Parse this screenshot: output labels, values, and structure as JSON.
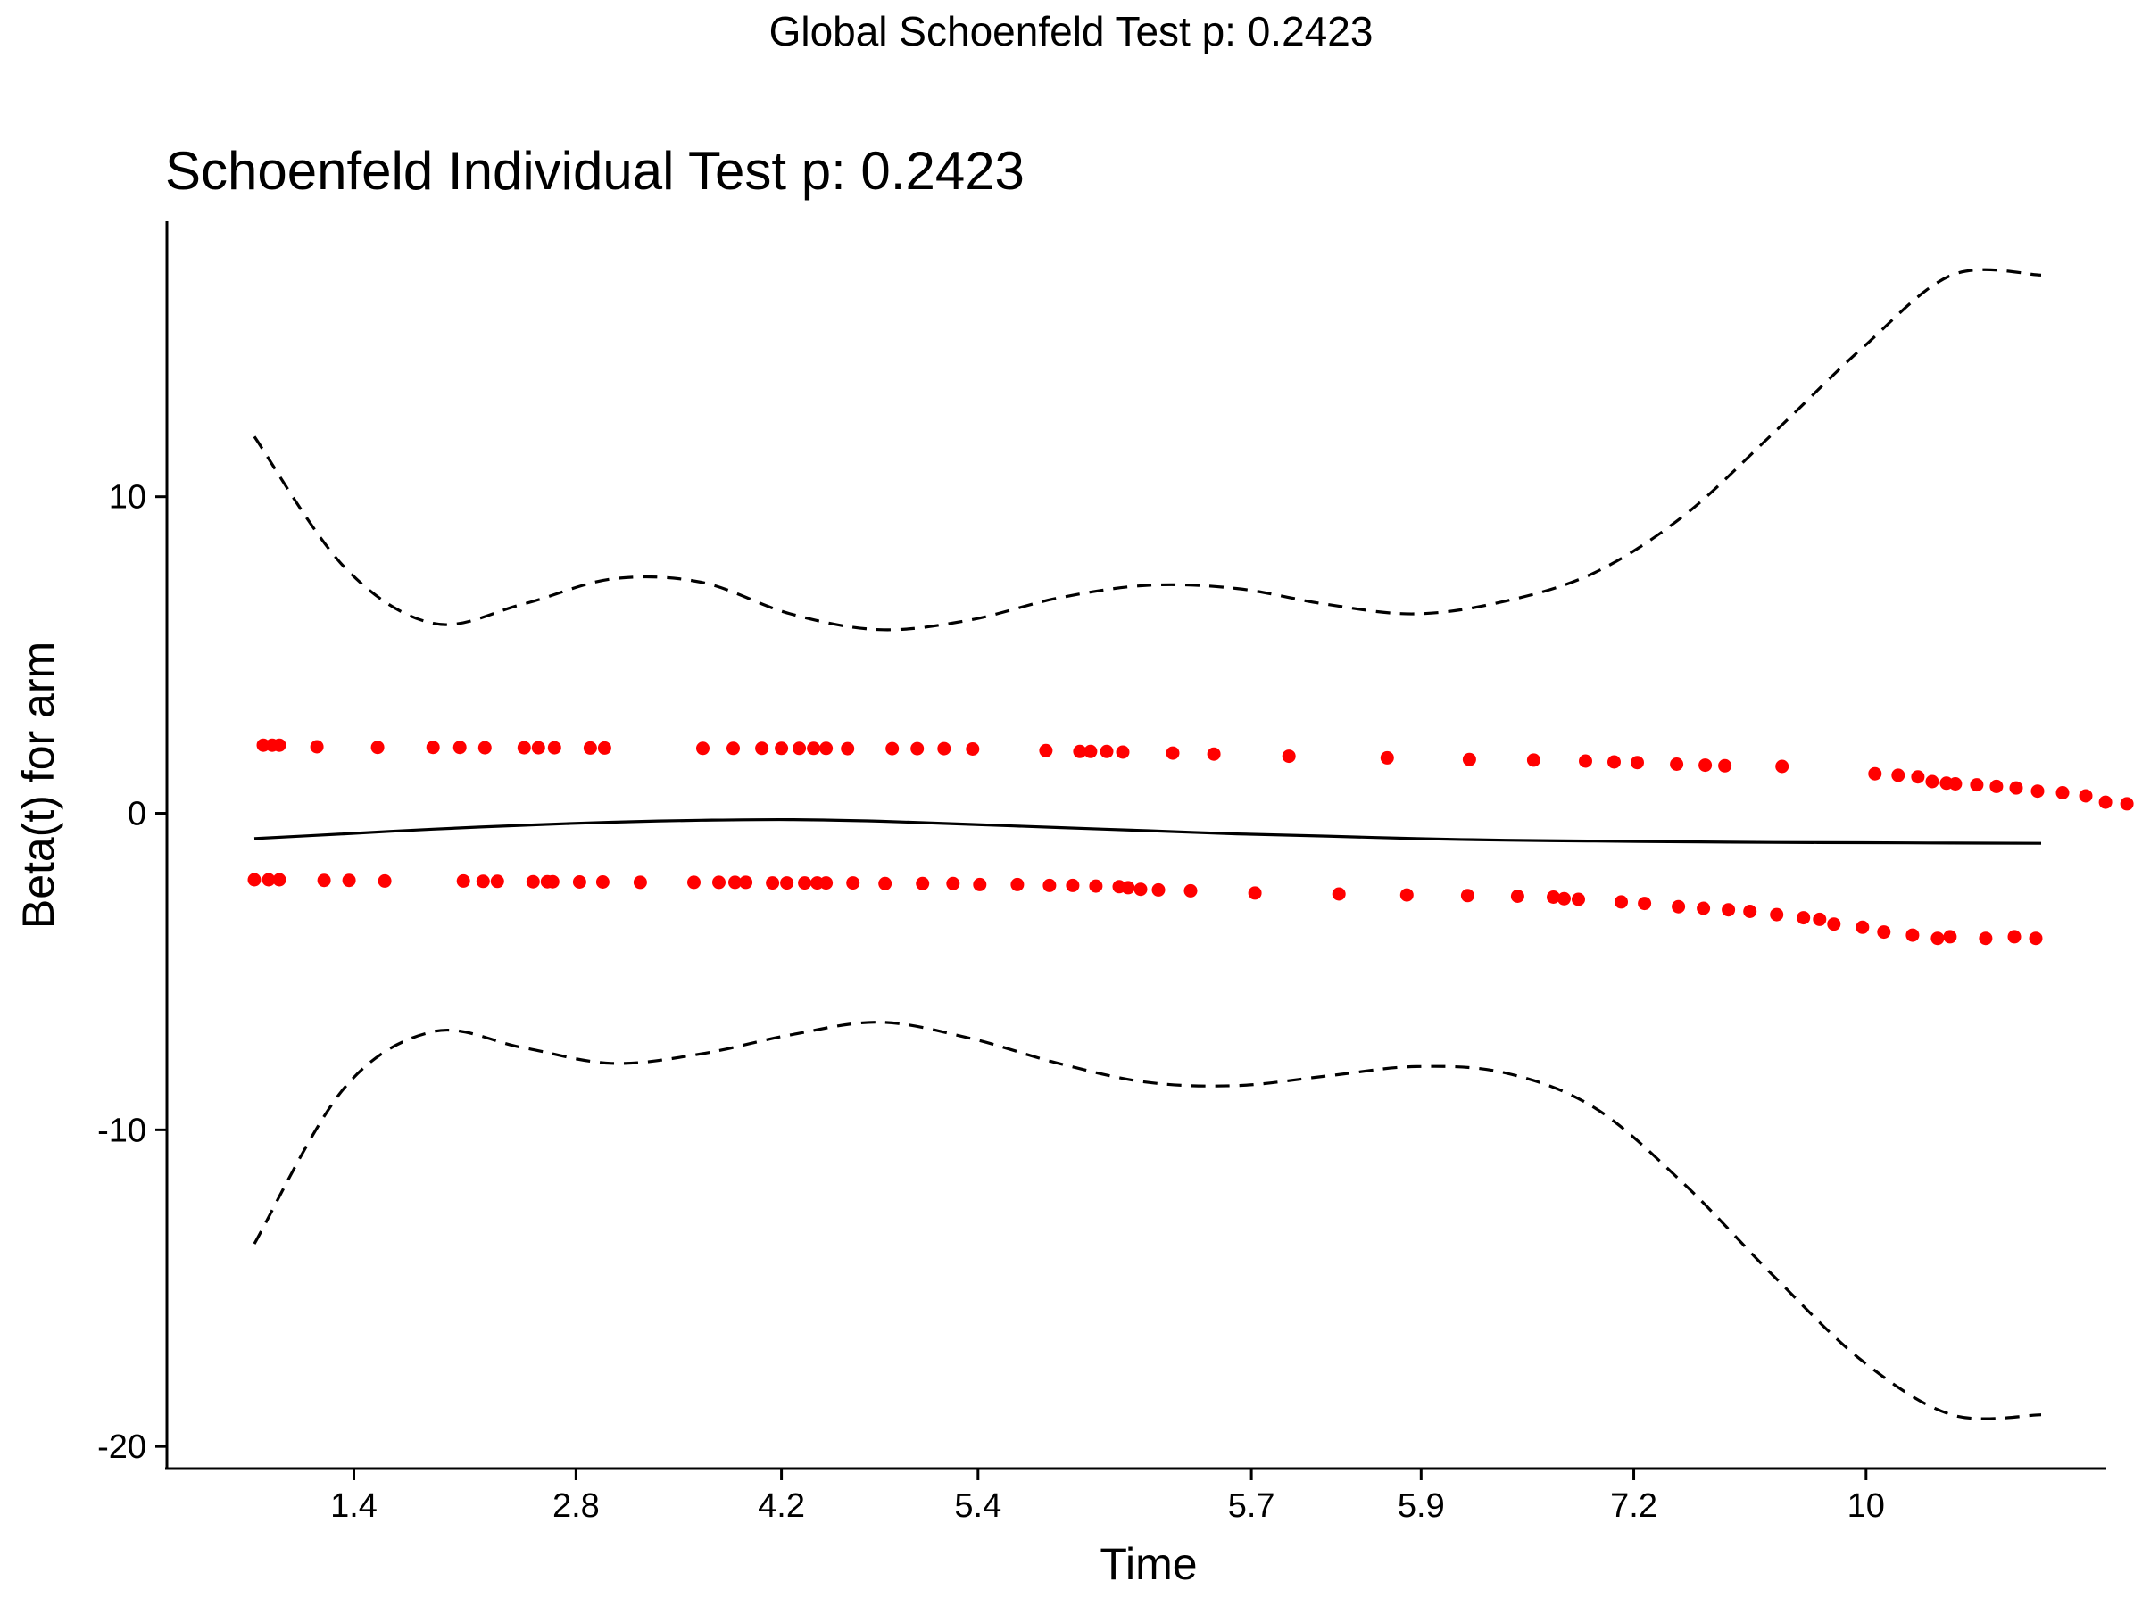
{
  "global_title": "Global Schoenfeld Test p: 0.2423",
  "chart_data": {
    "type": "scatter",
    "title": "Schoenfeld Individual Test p: 0.2423",
    "xlabel": "Time",
    "ylabel": "Beta(t) for arm",
    "x_tick_labels": [
      "1.4",
      "2.8",
      "4.2",
      "5.4",
      "5.7",
      "5.9",
      "7.2",
      "10"
    ],
    "y_ticks": [
      10,
      0,
      -10,
      -20
    ],
    "y_tick_labels": [
      "10",
      "0",
      "-10",
      "-20"
    ],
    "ylim": [
      -20.7,
      18.7
    ],
    "x_axis_note": "x-axis is a transformed (rank/km) time scale; tick labels show original times",
    "x_index_range": [
      0,
      100
    ],
    "x_tick_positions": [
      5.57,
      18.0,
      29.5,
      40.5,
      55.8,
      65.3,
      77.2,
      90.2
    ],
    "grid": false,
    "legend": "none",
    "colors": {
      "points": "#ff0000",
      "lines": "#000000"
    },
    "series": [
      {
        "name": "",
        "kind": "line",
        "style": "solid",
        "x": [
          0,
          5,
          10,
          15,
          20,
          25,
          30,
          35,
          40,
          45,
          50,
          55,
          60,
          65,
          70,
          75,
          80,
          85,
          90,
          95,
          100
        ],
        "y": [
          -0.8,
          -0.65,
          -0.5,
          -0.38,
          -0.28,
          -0.22,
          -0.2,
          -0.25,
          -0.35,
          -0.45,
          -0.55,
          -0.65,
          -0.72,
          -0.8,
          -0.85,
          -0.88,
          -0.9,
          -0.92,
          -0.93,
          -0.94,
          -0.95
        ]
      },
      {
        "name": "",
        "kind": "line",
        "style": "dashed",
        "x": [
          0,
          5,
          10,
          15,
          20,
          25,
          30,
          35,
          40,
          45,
          50,
          55,
          60,
          65,
          70,
          75,
          80,
          85,
          90,
          95,
          100
        ],
        "y": [
          11.9,
          7.8,
          6.0,
          6.6,
          7.4,
          7.3,
          6.3,
          5.8,
          6.1,
          6.8,
          7.2,
          7.1,
          6.6,
          6.3,
          6.7,
          7.6,
          9.4,
          12.0,
          14.7,
          17.0,
          17.0
        ]
      },
      {
        "name": "",
        "kind": "line",
        "style": "dashed",
        "x": [
          0,
          5,
          10,
          15,
          20,
          25,
          30,
          35,
          40,
          45,
          50,
          55,
          60,
          65,
          70,
          75,
          80,
          85,
          90,
          95,
          100
        ],
        "y": [
          -13.6,
          -8.7,
          -6.9,
          -7.4,
          -7.9,
          -7.6,
          -7.0,
          -6.6,
          -7.1,
          -7.9,
          -8.5,
          -8.6,
          -8.3,
          -8.0,
          -8.2,
          -9.3,
          -11.7,
          -14.6,
          -17.3,
          -19.0,
          -19.0
        ]
      },
      {
        "name": "",
        "kind": "points",
        "x": [
          0.5,
          1.0,
          1.4,
          3.5,
          6.9,
          10.0,
          11.5,
          12.9,
          15.1,
          15.9,
          16.8,
          18.8,
          19.6,
          25.1,
          26.8,
          28.4,
          29.5,
          30.5,
          31.3,
          32.0,
          33.2,
          35.7,
          37.1,
          38.6,
          40.2,
          44.3,
          46.2,
          46.8,
          47.7,
          48.6,
          51.4,
          53.7,
          57.9,
          63.4,
          68.0,
          71.6,
          74.5,
          76.1,
          77.4,
          79.6,
          81.2,
          82.3,
          85.5,
          90.7,
          92.0,
          93.1,
          93.9,
          94.7,
          95.2,
          96.4,
          97.5,
          98.6,
          99.8,
          101.2,
          102.5,
          103.6,
          104.8,
          107.6,
          108.9,
          110.0,
          111.2,
          112.2,
          113.3
        ],
        "y": [
          2.15,
          2.15,
          2.15,
          2.1,
          2.08,
          2.08,
          2.08,
          2.07,
          2.07,
          2.07,
          2.07,
          2.06,
          2.06,
          2.05,
          2.05,
          2.05,
          2.05,
          2.05,
          2.05,
          2.05,
          2.04,
          2.04,
          2.04,
          2.04,
          2.03,
          1.98,
          1.95,
          1.95,
          1.95,
          1.93,
          1.9,
          1.87,
          1.8,
          1.75,
          1.7,
          1.68,
          1.65,
          1.62,
          1.6,
          1.55,
          1.52,
          1.5,
          1.48,
          1.25,
          1.2,
          1.15,
          1.0,
          0.95,
          0.93,
          0.9,
          0.85,
          0.8,
          0.7,
          0.65,
          0.55,
          0.35,
          0.3,
          0.32,
          0.28,
          0.34,
          0.27,
          0.29,
          0.32
        ]
      },
      {
        "name": "",
        "kind": "points",
        "x": [
          0.0,
          0.8,
          1.4,
          3.9,
          5.3,
          7.3,
          11.7,
          12.8,
          13.6,
          15.6,
          16.4,
          16.7,
          18.2,
          19.5,
          21.6,
          24.6,
          26.0,
          26.9,
          27.5,
          29.0,
          29.8,
          30.8,
          31.5,
          32.0,
          33.5,
          35.3,
          37.4,
          39.1,
          40.6,
          42.7,
          44.5,
          45.8,
          47.1,
          48.4,
          48.9,
          49.6,
          50.6,
          52.4,
          56.0,
          60.7,
          64.5,
          67.9,
          70.7,
          72.7,
          73.3,
          74.1,
          76.5,
          77.8,
          79.7,
          81.1,
          82.5,
          83.7,
          85.2,
          86.7,
          87.6,
          88.4,
          90.0,
          91.2,
          92.8,
          94.2,
          94.9,
          96.9,
          98.5,
          99.7
        ],
        "y": [
          -2.1,
          -2.1,
          -2.1,
          -2.12,
          -2.12,
          -2.14,
          -2.14,
          -2.15,
          -2.15,
          -2.16,
          -2.16,
          -2.16,
          -2.17,
          -2.17,
          -2.18,
          -2.18,
          -2.18,
          -2.18,
          -2.18,
          -2.2,
          -2.2,
          -2.2,
          -2.2,
          -2.2,
          -2.2,
          -2.22,
          -2.22,
          -2.22,
          -2.25,
          -2.25,
          -2.28,
          -2.28,
          -2.3,
          -2.32,
          -2.35,
          -2.4,
          -2.42,
          -2.45,
          -2.52,
          -2.55,
          -2.58,
          -2.6,
          -2.62,
          -2.65,
          -2.7,
          -2.72,
          -2.8,
          -2.85,
          -2.95,
          -3.0,
          -3.05,
          -3.1,
          -3.2,
          -3.3,
          -3.35,
          -3.5,
          -3.6,
          -3.75,
          -3.85,
          -3.95,
          -3.9,
          -3.95,
          -3.9,
          -3.95
        ]
      }
    ]
  }
}
